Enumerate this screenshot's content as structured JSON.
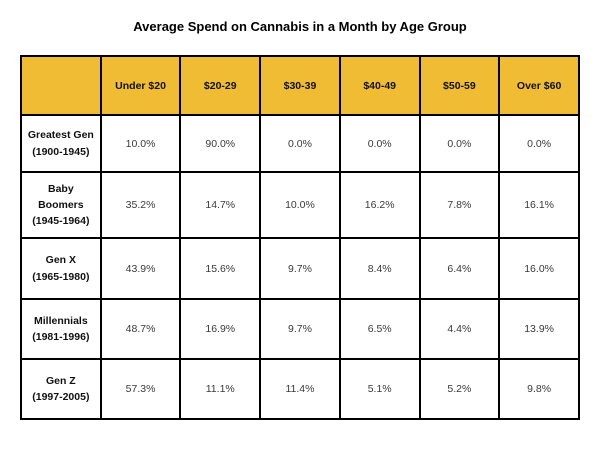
{
  "title": "Average Spend on Cannabis in a Month by Age Group",
  "colors": {
    "header_bg": "#F0BC34",
    "grid_border": "#000000",
    "value_text": "#3a3a3a",
    "label_text": "#111111",
    "page_bg": "#ffffff"
  },
  "table": {
    "corner": "",
    "columns": [
      "Under $20",
      "$20-29",
      "$30-39",
      "$40-49",
      "$50-59",
      "Over $60"
    ],
    "rows": [
      {
        "name": "Greatest Gen",
        "years": "(1900-1945)",
        "values": [
          "10.0%",
          "90.0%",
          "0.0%",
          "0.0%",
          "0.0%",
          "0.0%"
        ]
      },
      {
        "name": "Baby Boomers",
        "years": "(1945-1964)",
        "values": [
          "35.2%",
          "14.7%",
          "10.0%",
          "16.2%",
          "7.8%",
          "16.1%"
        ]
      },
      {
        "name": "Gen X",
        "years": "(1965-1980)",
        "values": [
          "43.9%",
          "15.6%",
          "9.7%",
          "8.4%",
          "6.4%",
          "16.0%"
        ]
      },
      {
        "name": "Millennials",
        "years": "(1981-1996)",
        "values": [
          "48.7%",
          "16.9%",
          "9.7%",
          "6.5%",
          "4.4%",
          "13.9%"
        ]
      },
      {
        "name": "Gen Z",
        "years": "(1997-2005)",
        "values": [
          "57.3%",
          "11.1%",
          "11.4%",
          "5.1%",
          "5.2%",
          "9.8%"
        ]
      }
    ]
  },
  "chart_data": {
    "type": "table",
    "title": "Average Spend on Cannabis in a Month by Age Group",
    "categories": [
      "Under $20",
      "$20-29",
      "$30-39",
      "$40-49",
      "$50-59",
      "Over $60"
    ],
    "series": [
      {
        "name": "Greatest Gen (1900-1945)",
        "values": [
          10.0,
          90.0,
          0.0,
          0.0,
          0.0,
          0.0
        ]
      },
      {
        "name": "Baby Boomers (1945-1964)",
        "values": [
          35.2,
          14.7,
          10.0,
          16.2,
          7.8,
          16.1
        ]
      },
      {
        "name": "Gen X (1965-1980)",
        "values": [
          43.9,
          15.6,
          9.7,
          8.4,
          6.4,
          16.0
        ]
      },
      {
        "name": "Millennials (1981-1996)",
        "values": [
          48.7,
          16.9,
          9.7,
          6.5,
          4.4,
          13.9
        ]
      },
      {
        "name": "Gen Z (1997-2005)",
        "values": [
          57.3,
          11.1,
          11.4,
          5.1,
          5.2,
          9.8
        ]
      }
    ],
    "unit": "%",
    "layout": {
      "header_fill": "#F0BC34",
      "grid": "on",
      "legend": "none"
    }
  }
}
